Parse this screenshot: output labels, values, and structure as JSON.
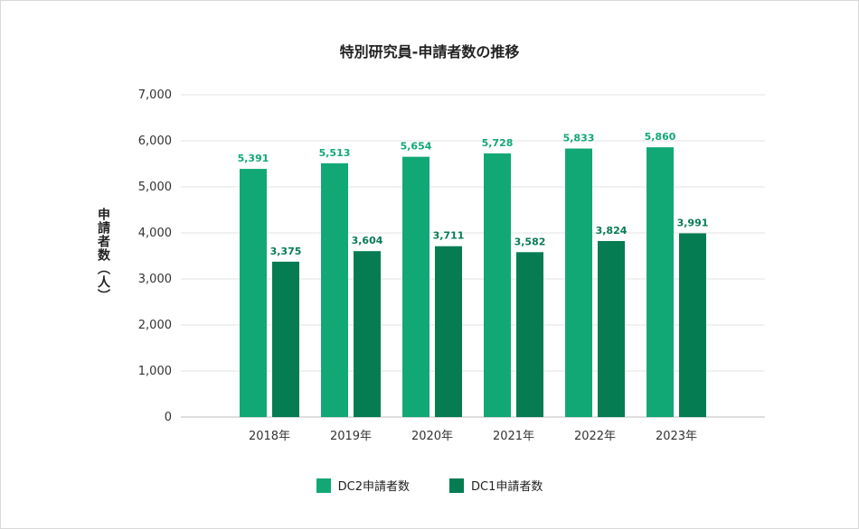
{
  "chart_data": {
    "type": "bar",
    "title": "特別研究員-申請者数の推移",
    "ylabel": "申請者数（人）",
    "xlabel": "",
    "categories": [
      "2018年",
      "2019年",
      "2020年",
      "2021年",
      "2022年",
      "2023年"
    ],
    "series": [
      {
        "name": "DC2申請者数",
        "color": "#12a876",
        "values": [
          5391,
          5513,
          5654,
          5728,
          5833,
          5860
        ],
        "labels": [
          "5,391",
          "5,513",
          "5,654",
          "5,728",
          "5,833",
          "5,860"
        ]
      },
      {
        "name": "DC1申請者数",
        "color": "#067c53",
        "values": [
          3375,
          3604,
          3711,
          3582,
          3824,
          3991
        ],
        "labels": [
          "3,375",
          "3,604",
          "3,711",
          "3,582",
          "3,824",
          "3,991"
        ]
      }
    ],
    "ylim": [
      0,
      7000
    ],
    "yticks": [
      "0",
      "1,000",
      "2,000",
      "3,000",
      "4,000",
      "5,000",
      "6,000",
      "7,000"
    ],
    "grid": true,
    "legend_position": "bottom"
  }
}
